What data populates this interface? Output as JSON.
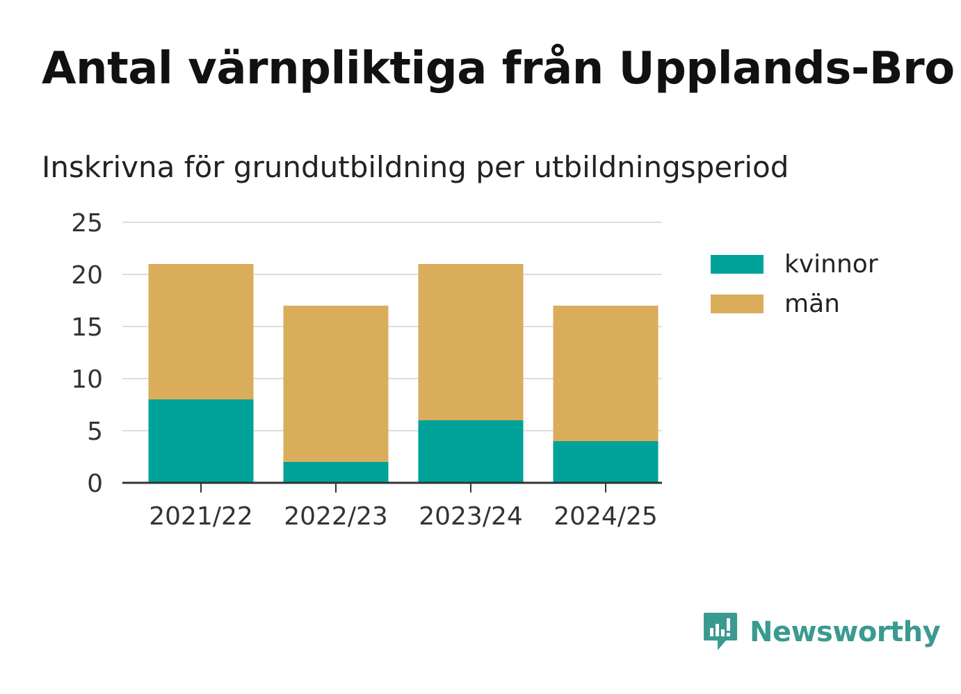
{
  "title": "Antal värnpliktiga från Upplands-Bro",
  "subtitle": "Inskrivna för grundutbildning per utbildningsperiod",
  "brand": {
    "name": "Newsworthy",
    "color": "#3a9a90",
    "icon": "newsworthy-logo-icon"
  },
  "colors": {
    "kvinnor": "#00a29a",
    "man": "#d9ad5a",
    "grid": "#dddddd",
    "axis": "#333333",
    "tick_text": "#333333"
  },
  "chart_data": {
    "type": "bar",
    "stacked": true,
    "categories": [
      "2021/22",
      "2022/23",
      "2023/24",
      "2024/25"
    ],
    "series": [
      {
        "name": "kvinnor",
        "values": [
          8,
          2,
          6,
          4
        ],
        "color": "#00a29a"
      },
      {
        "name": "män",
        "values": [
          13,
          15,
          15,
          13
        ],
        "color": "#d9ad5a"
      }
    ],
    "ylim": [
      0,
      25
    ],
    "yticks": [
      0,
      5,
      10,
      15,
      20,
      25
    ],
    "ytick_labels": [
      "0",
      "5",
      "10",
      "15",
      "20",
      "25"
    ],
    "grid": true,
    "legend_position": "right"
  }
}
